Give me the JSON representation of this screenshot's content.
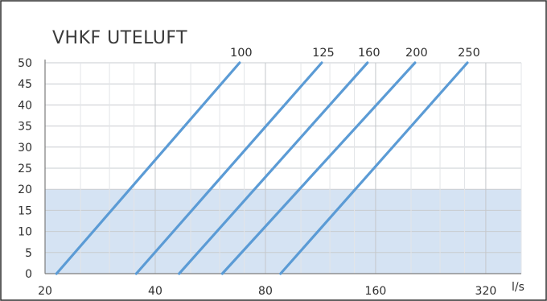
{
  "chart_data": {
    "type": "line",
    "title": "VHKF UTELUFT",
    "x_unit_label": "l/s",
    "x_scale": "log2",
    "xlim": [
      20,
      400
    ],
    "ylim": [
      0,
      50
    ],
    "x_tick_labels": [
      20,
      40,
      80,
      160,
      320
    ],
    "y_tick_labels": [
      0,
      5,
      10,
      15,
      20,
      25,
      30,
      35,
      40,
      45,
      50
    ],
    "grid": true,
    "highlight_band": {
      "y_from": 0,
      "y_to": 20,
      "color": "#d5e3f3"
    },
    "line_color": "#5b9bd5",
    "series": [
      {
        "name": "100",
        "points": [
          [
            21.5,
            0
          ],
          [
            68,
            50
          ]
        ]
      },
      {
        "name": "125",
        "points": [
          [
            35.5,
            0
          ],
          [
            114,
            50
          ]
        ]
      },
      {
        "name": "160",
        "points": [
          [
            46.5,
            0
          ],
          [
            152,
            50
          ]
        ]
      },
      {
        "name": "200",
        "points": [
          [
            61,
            0
          ],
          [
            205,
            50
          ]
        ]
      },
      {
        "name": "250",
        "points": [
          [
            88,
            0
          ],
          [
            285,
            50
          ]
        ]
      }
    ]
  }
}
